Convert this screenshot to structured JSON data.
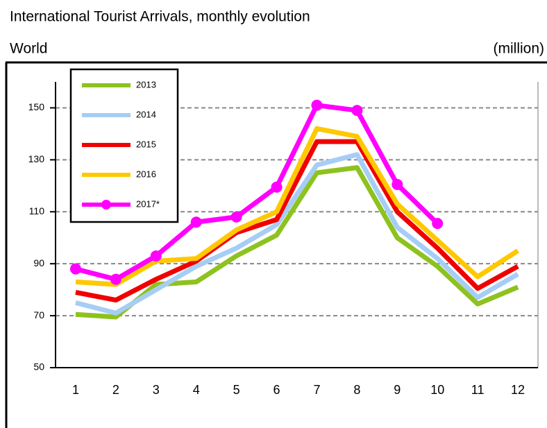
{
  "chart_data": {
    "type": "line",
    "title": "International Tourist Arrivals, monthly evolution",
    "subtitle": "World",
    "unit_label": "(million)",
    "categories": [
      "1",
      "2",
      "3",
      "4",
      "5",
      "6",
      "7",
      "8",
      "9",
      "10",
      "11",
      "12"
    ],
    "series": [
      {
        "name": "2013",
        "color": "#8dc21f",
        "values": [
          70.5,
          69.5,
          82,
          83,
          93,
          101,
          125,
          127,
          100,
          89,
          74.5,
          81
        ]
      },
      {
        "name": "2014",
        "color": "#a6cdf5",
        "values": [
          75,
          71,
          80,
          89,
          96,
          105,
          128,
          132,
          104,
          92,
          77,
          86
        ]
      },
      {
        "name": "2015",
        "color": "#f00000",
        "values": [
          79,
          76,
          84,
          91,
          102,
          107,
          137,
          137,
          110,
          96,
          80.5,
          89
        ]
      },
      {
        "name": "2016",
        "color": "#ffc800",
        "values": [
          83,
          82,
          91,
          92,
          103,
          110,
          142,
          139,
          113,
          99,
          85,
          95
        ]
      },
      {
        "name": "2017*",
        "color": "#ff00ff",
        "markers": true,
        "values": [
          88,
          84,
          93,
          106,
          108,
          119.5,
          151,
          149,
          120.5,
          105.5,
          null,
          null
        ]
      }
    ],
    "ylim": [
      50,
      160
    ],
    "yticks": [
      50,
      70,
      90,
      110,
      130,
      150
    ],
    "grid": true
  }
}
